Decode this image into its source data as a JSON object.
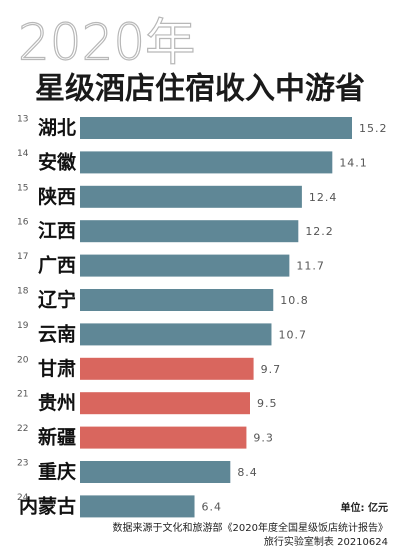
{
  "chart_data": {
    "type": "barh",
    "subtitle": "2020年",
    "title": "星级酒店住宿收入中游省",
    "ranks": [
      "13",
      "14",
      "15",
      "16",
      "17",
      "18",
      "19",
      "20",
      "21",
      "22",
      "23",
      "24"
    ],
    "categories": [
      "湖北",
      "安徽",
      "陕西",
      "江西",
      "广西",
      "辽宁",
      "云南",
      "甘肃",
      "贵州",
      "新疆",
      "重庆",
      "内蒙古"
    ],
    "values": [
      15.2,
      14.1,
      12.4,
      12.2,
      11.7,
      10.8,
      10.7,
      9.7,
      9.5,
      9.3,
      8.4,
      6.4
    ],
    "colors": [
      "#5f8796",
      "#5f8796",
      "#5f8796",
      "#5f8796",
      "#5f8796",
      "#5f8796",
      "#5f8796",
      "#d9665e",
      "#d9665e",
      "#d9665e",
      "#5f8796",
      "#5f8796"
    ],
    "unit": "单位: 亿元",
    "source": "数据来源于文化和旅游部《2020年度全国星级饭店统计报告》",
    "credit": "旅行实验室制表 20210624"
  }
}
